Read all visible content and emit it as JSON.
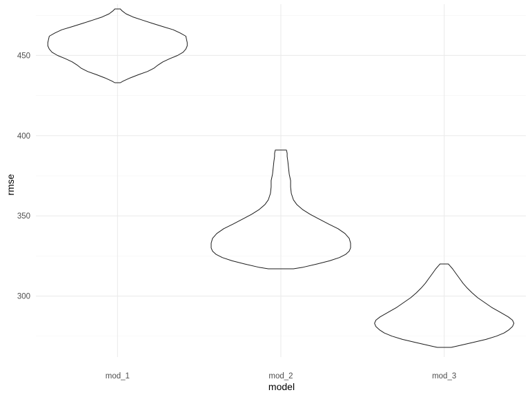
{
  "chart_data": {
    "type": "violin",
    "title": "",
    "xlabel": "model",
    "ylabel": "rmse",
    "categories": [
      "mod_1",
      "mod_2",
      "mod_3"
    ],
    "ylim": [
      262,
      482
    ],
    "yticks": [
      300,
      350,
      400,
      450
    ],
    "grid": true,
    "legend": "none",
    "colors": {
      "outline": "#1a1a1a",
      "grid_major": "#ebebeb",
      "grid_minor": "#f3f3f3",
      "tick_text": "#4d4d4d"
    },
    "series": [
      {
        "category": "mod_1",
        "min": 433,
        "max": 479,
        "profile": [
          [
            433,
            0.04
          ],
          [
            434,
            0.08
          ],
          [
            436,
            0.18
          ],
          [
            438,
            0.3
          ],
          [
            440,
            0.43
          ],
          [
            442,
            0.52
          ],
          [
            444,
            0.58
          ],
          [
            446,
            0.65
          ],
          [
            448,
            0.75
          ],
          [
            450,
            0.86
          ],
          [
            452,
            0.94
          ],
          [
            454,
            0.98
          ],
          [
            456,
            1.0
          ],
          [
            458,
            1.0
          ],
          [
            460,
            0.99
          ],
          [
            462,
            0.98
          ],
          [
            464,
            0.9
          ],
          [
            466,
            0.8
          ],
          [
            468,
            0.65
          ],
          [
            470,
            0.5
          ],
          [
            472,
            0.36
          ],
          [
            474,
            0.22
          ],
          [
            476,
            0.12
          ],
          [
            478,
            0.06
          ],
          [
            479,
            0.04
          ]
        ]
      },
      {
        "category": "mod_2",
        "min": 317,
        "max": 391,
        "profile": [
          [
            317,
            0.18
          ],
          [
            318,
            0.32
          ],
          [
            320,
            0.52
          ],
          [
            322,
            0.7
          ],
          [
            324,
            0.84
          ],
          [
            326,
            0.93
          ],
          [
            328,
            0.98
          ],
          [
            330,
            1.0
          ],
          [
            333,
            1.0
          ],
          [
            336,
            0.98
          ],
          [
            339,
            0.92
          ],
          [
            342,
            0.82
          ],
          [
            345,
            0.68
          ],
          [
            348,
            0.55
          ],
          [
            351,
            0.42
          ],
          [
            354,
            0.31
          ],
          [
            357,
            0.23
          ],
          [
            360,
            0.18
          ],
          [
            364,
            0.15
          ],
          [
            368,
            0.14
          ],
          [
            372,
            0.14
          ],
          [
            376,
            0.12
          ],
          [
            380,
            0.11
          ],
          [
            384,
            0.1
          ],
          [
            387,
            0.09
          ],
          [
            389,
            0.09
          ],
          [
            391,
            0.08
          ]
        ]
      },
      {
        "category": "mod_3",
        "min": 268,
        "max": 320,
        "profile": [
          [
            268,
            0.1
          ],
          [
            269,
            0.2
          ],
          [
            271,
            0.4
          ],
          [
            273,
            0.6
          ],
          [
            275,
            0.75
          ],
          [
            277,
            0.86
          ],
          [
            279,
            0.93
          ],
          [
            281,
            0.98
          ],
          [
            283,
            1.0
          ],
          [
            285,
            0.98
          ],
          [
            287,
            0.92
          ],
          [
            290,
            0.8
          ],
          [
            293,
            0.68
          ],
          [
            296,
            0.58
          ],
          [
            299,
            0.48
          ],
          [
            302,
            0.4
          ],
          [
            305,
            0.33
          ],
          [
            308,
            0.27
          ],
          [
            311,
            0.22
          ],
          [
            314,
            0.17
          ],
          [
            317,
            0.12
          ],
          [
            319,
            0.08
          ],
          [
            320,
            0.06
          ]
        ]
      }
    ]
  }
}
